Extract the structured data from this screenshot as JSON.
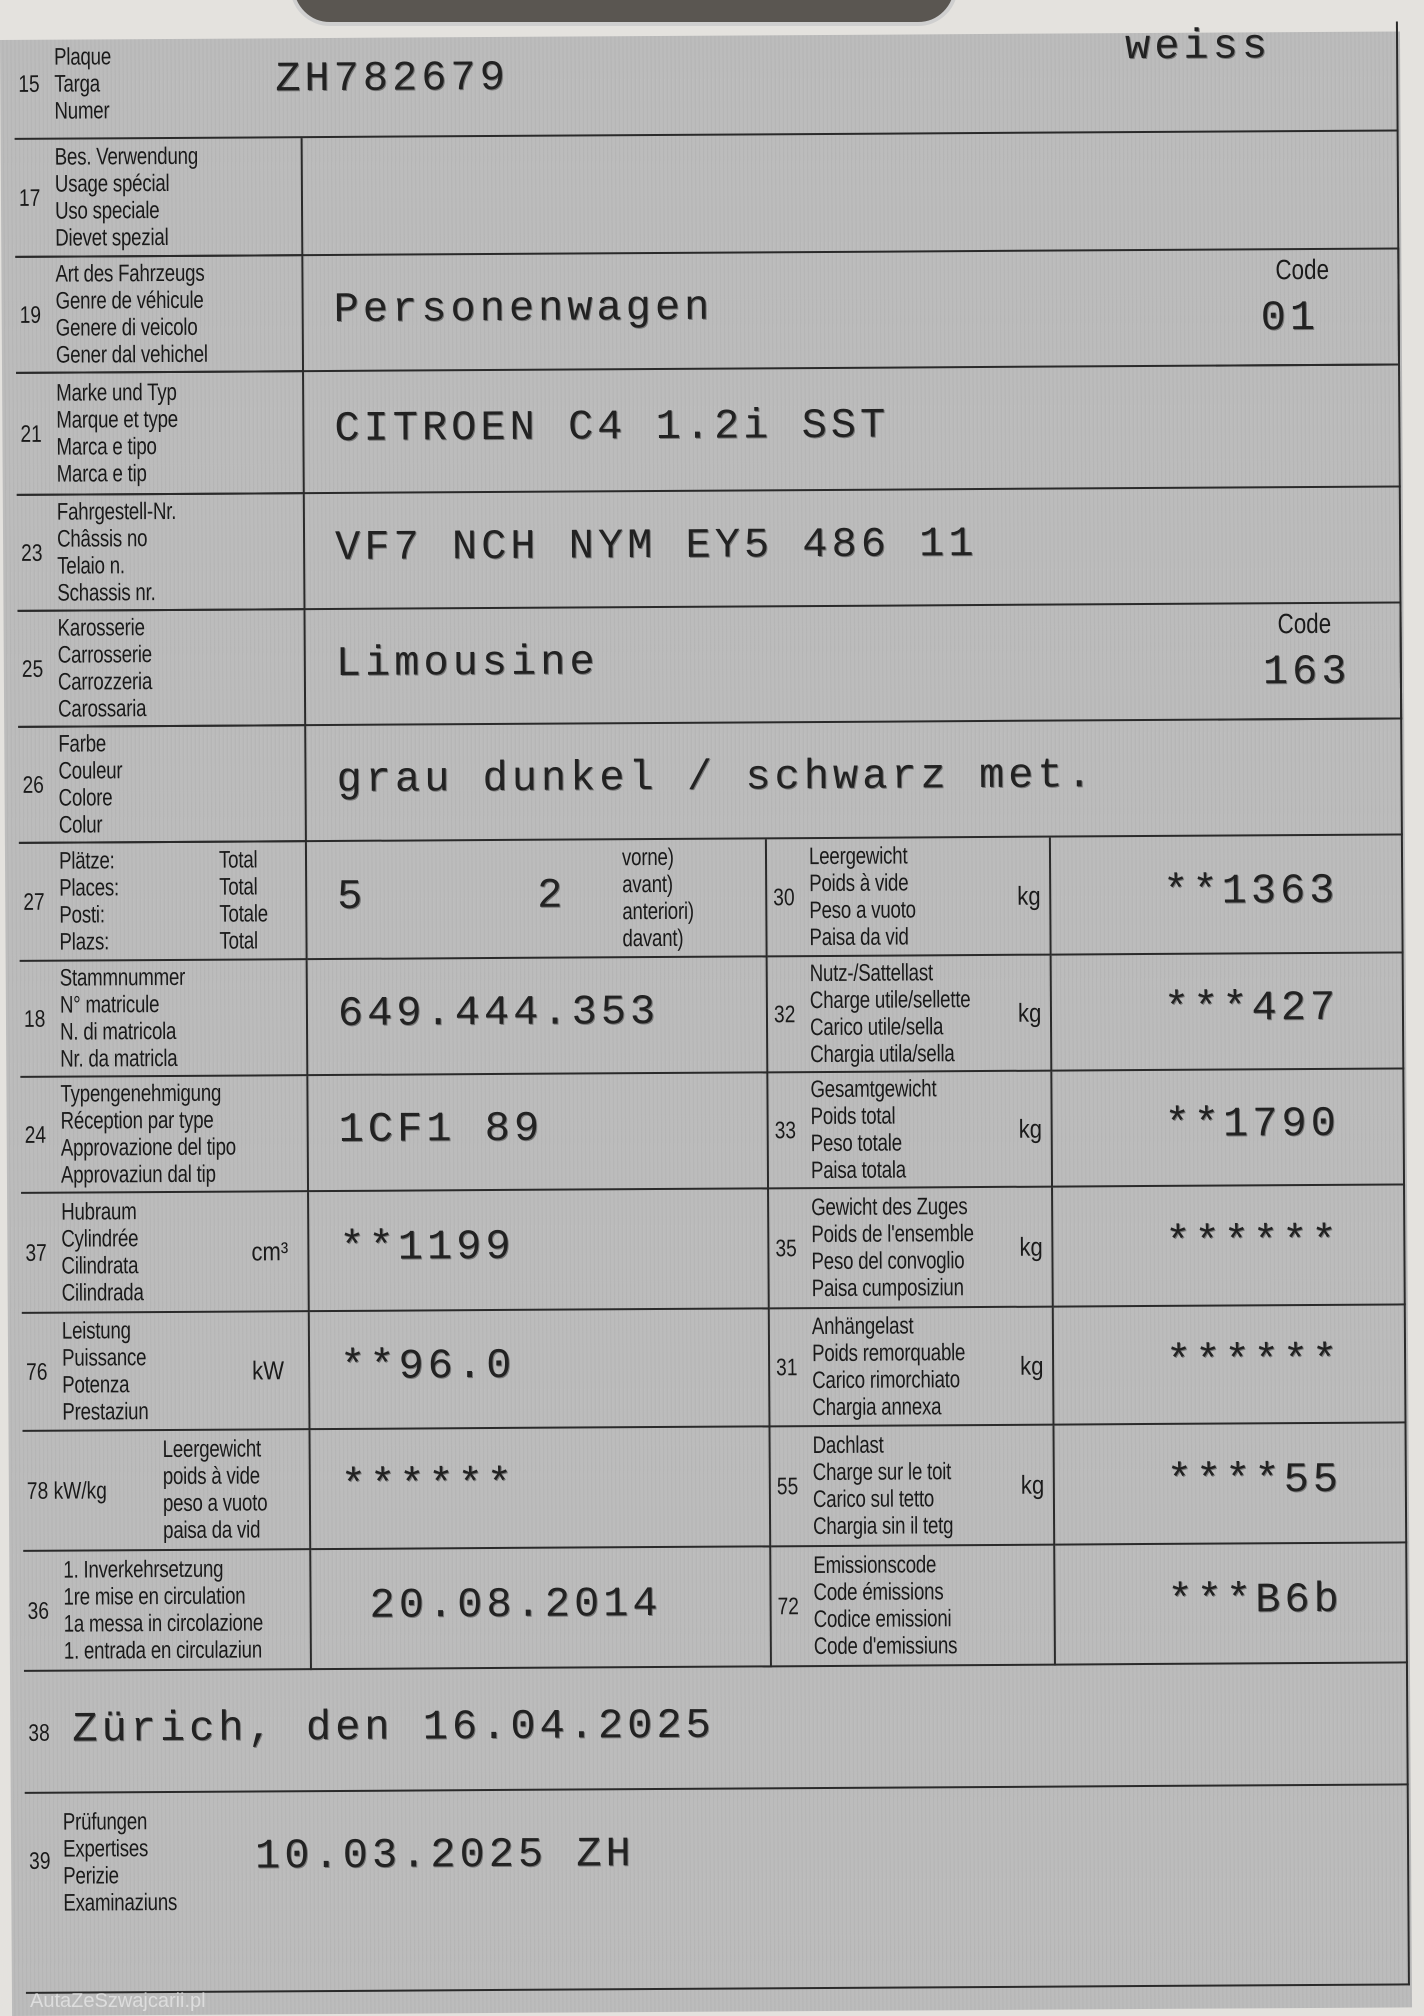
{
  "document": {
    "row15": {
      "num": "15",
      "labels": [
        "Plaque",
        "Targa",
        "Numer"
      ],
      "value": "ZH782679",
      "extra": "weiss"
    },
    "row17": {
      "num": "17",
      "labels": [
        "Bes. Verwendung",
        "Usage spécial",
        "Uso speciale",
        "Dievet spezial"
      ],
      "value": ""
    },
    "row19": {
      "num": "19",
      "labels": [
        "Art des Fahrzeugs",
        "Genre de véhicule",
        "Genere di veicolo",
        "Gener dal vehichel"
      ],
      "value": "Personenwagen",
      "code_label": "Code",
      "code": "01"
    },
    "row21": {
      "num": "21",
      "labels": [
        "Marke und Typ",
        "Marque et type",
        "Marca e tipo",
        "Marca e tip"
      ],
      "value": "CITROEN C4 1.2i SST"
    },
    "row23": {
      "num": "23",
      "labels": [
        "Fahrgestell-Nr.",
        "Châssis no",
        "Telaio n.",
        "Schassis nr."
      ],
      "value": "VF7 NCH NYM EY5 486 11"
    },
    "row25": {
      "num": "25",
      "labels": [
        "Karosserie",
        "Carrosserie",
        "Carrozzeria",
        "Carossaria"
      ],
      "value": "Limousine",
      "code_label": "Code",
      "code": "163"
    },
    "row26": {
      "num": "26",
      "labels": [
        "Farbe",
        "Couleur",
        "Colore",
        "Colur"
      ],
      "value": "grau dunkel / schwarz met."
    },
    "row27": {
      "num": "27",
      "labels": [
        "Plätze:",
        "Places:",
        "Posti:",
        "Plazs:"
      ],
      "totals": [
        "Total",
        "Total",
        "Totale",
        "Total"
      ],
      "value": "5",
      "front": "2",
      "front_labels": [
        "vorne)",
        "avant)",
        "anteriori)",
        "davant)"
      ]
    },
    "row18": {
      "num": "18",
      "labels": [
        "Stammnummer",
        "N° matricule",
        "N. di matricola",
        "Nr. da matricla"
      ],
      "value": "649.444.353"
    },
    "row24": {
      "num": "24",
      "labels": [
        "Typengenehmigung",
        "Réception par type",
        "Approvazione del tipo",
        "Approvaziun dal tip"
      ],
      "value": "1CF1 89"
    },
    "row37": {
      "num": "37",
      "labels": [
        "Hubraum",
        "Cylindrée",
        "Cilindrata",
        "Cilindrada"
      ],
      "unit": "cm³",
      "value": "**1199"
    },
    "row76": {
      "num": "76",
      "labels": [
        "Leistung",
        "Puissance",
        "Potenza",
        "Prestaziun"
      ],
      "unit": "kW",
      "value": "**96.0"
    },
    "row78": {
      "num": "78 kW/kg",
      "labels": [
        "Leergewicht",
        "poids à vide",
        "peso a vuoto",
        "paisa da vid"
      ],
      "value": "******"
    },
    "row36": {
      "num": "36",
      "labels": [
        "1. Inverkehrsetzung",
        "1re mise en circulation",
        "1a messa in circolazione",
        "1. entrada en circulaziun"
      ],
      "value": "20.08.2014"
    },
    "row30": {
      "num": "30",
      "labels": [
        "Leergewicht",
        "Poids à vide",
        "Peso a vuoto",
        "Paisa da vid"
      ],
      "unit": "kg",
      "value": "**1363"
    },
    "row32": {
      "num": "32",
      "labels": [
        "Nutz-/Sattellast",
        "Charge utile/sellette",
        "Carico utile/sella",
        "Chargia utila/sella"
      ],
      "unit": "kg",
      "value": "***427"
    },
    "row33": {
      "num": "33",
      "labels": [
        "Gesamtgewicht",
        "Poids total",
        "Peso totale",
        "Paisa totala"
      ],
      "unit": "kg",
      "value": "**1790"
    },
    "row35": {
      "num": "35",
      "labels": [
        "Gewicht des Zuges",
        "Poids de l'ensemble",
        "Peso del convoglio",
        "Paisa cumposiziun"
      ],
      "unit": "kg",
      "value": "******"
    },
    "row31": {
      "num": "31",
      "labels": [
        "Anhängelast",
        "Poids remorquable",
        "Carico rimorchiato",
        "Chargia annexa"
      ],
      "unit": "kg",
      "value": "******"
    },
    "row55": {
      "num": "55",
      "labels": [
        "Dachlast",
        "Charge sur le toit",
        "Carico sul tetto",
        "Chargia sin il tetg"
      ],
      "unit": "kg",
      "value": "****55"
    },
    "row72": {
      "num": "72",
      "labels": [
        "Emissionscode",
        "Code émissions",
        "Codice emissioni",
        "Code d'emissiuns"
      ],
      "value": "***B6b"
    },
    "row38": {
      "num": "38",
      "value": "Zürich, den 16.04.2025"
    },
    "row39": {
      "num": "39",
      "labels": [
        "Prüfungen",
        "Expertises",
        "Perizie",
        "Examinaziuns"
      ],
      "value": "10.03.2025 ZH"
    }
  },
  "watermark": "AutaZeSzwajcarii.pl"
}
